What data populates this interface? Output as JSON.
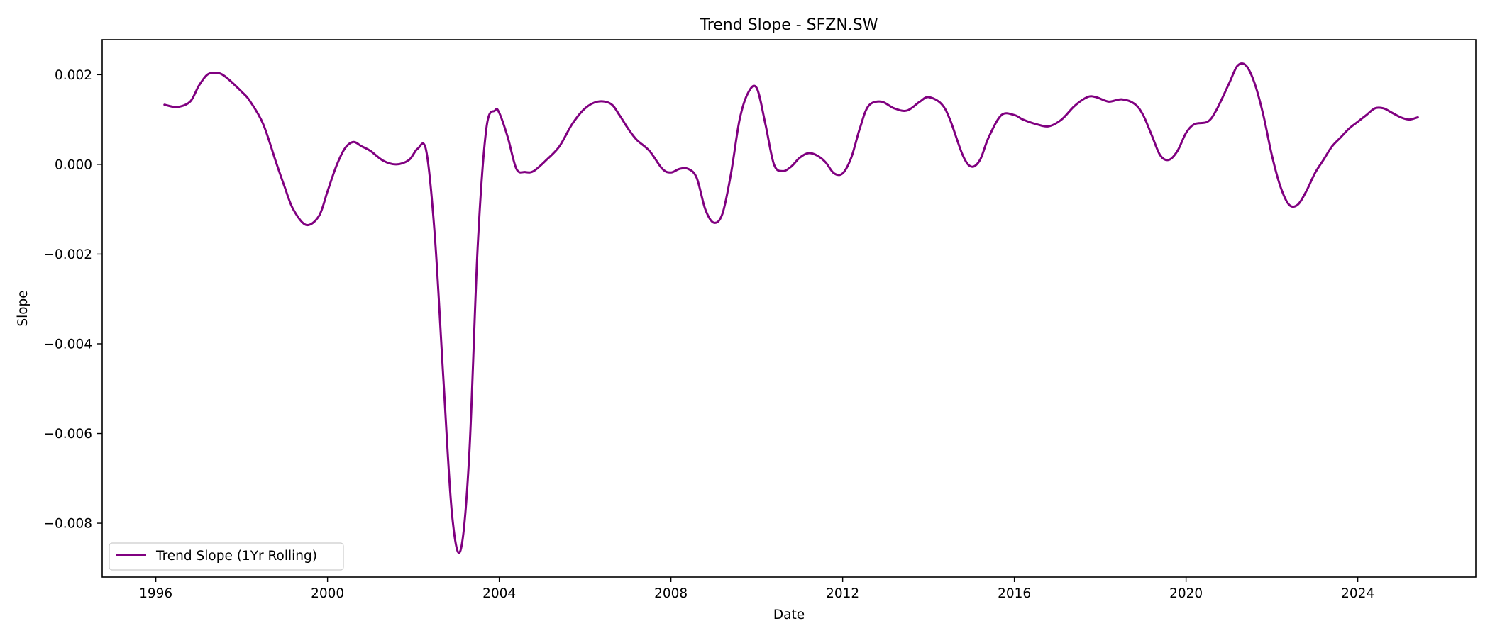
{
  "chart_data": {
    "type": "line",
    "title": "Trend Slope - SFZN.SW",
    "xlabel": "Date",
    "ylabel": "Slope",
    "xlim": [
      1994.75,
      2026.75
    ],
    "ylim": [
      -0.0092,
      0.00278
    ],
    "x_ticks": [
      1996,
      2000,
      2004,
      2008,
      2012,
      2016,
      2020,
      2024
    ],
    "y_ticks": [
      -0.008,
      -0.006,
      -0.004,
      -0.002,
      0.0,
      0.002
    ],
    "y_tick_labels": [
      "−0.008",
      "−0.006",
      "−0.004",
      "−0.002",
      "0.000",
      "0.002"
    ],
    "grid": false,
    "legend_position": "lower-left",
    "series": [
      {
        "name": "Trend Slope (1Yr Rolling)",
        "color": "#800080",
        "x": [
          1996.2,
          1996.5,
          1996.8,
          1997.0,
          1997.2,
          1997.4,
          1997.6,
          1998.0,
          1998.2,
          1998.5,
          1998.8,
          1999.0,
          1999.2,
          1999.5,
          1999.8,
          2000.0,
          2000.2,
          2000.4,
          2000.6,
          2000.8,
          2001.0,
          2001.3,
          2001.6,
          2001.9,
          2002.1,
          2002.3,
          2002.5,
          2002.7,
          2002.9,
          2003.1,
          2003.3,
          2003.5,
          2003.7,
          2003.9,
          2004.0,
          2004.2,
          2004.4,
          2004.6,
          2004.8,
          2005.1,
          2005.4,
          2005.7,
          2006.0,
          2006.3,
          2006.6,
          2006.8,
          2007.0,
          2007.2,
          2007.5,
          2007.8,
          2008.0,
          2008.2,
          2008.4,
          2008.6,
          2008.8,
          2009.0,
          2009.2,
          2009.4,
          2009.6,
          2009.8,
          2010.0,
          2010.2,
          2010.4,
          2010.6,
          2010.8,
          2011.0,
          2011.2,
          2011.4,
          2011.6,
          2011.8,
          2012.0,
          2012.2,
          2012.4,
          2012.6,
          2012.9,
          2013.2,
          2013.5,
          2013.8,
          2014.0,
          2014.3,
          2014.5,
          2014.8,
          2015.0,
          2015.2,
          2015.4,
          2015.7,
          2016.0,
          2016.2,
          2016.5,
          2016.8,
          2017.1,
          2017.4,
          2017.7,
          2017.9,
          2018.2,
          2018.5,
          2018.8,
          2019.0,
          2019.2,
          2019.4,
          2019.6,
          2019.8,
          2020.0,
          2020.2,
          2020.5,
          2020.7,
          2021.0,
          2021.2,
          2021.4,
          2021.6,
          2021.8,
          2022.0,
          2022.2,
          2022.4,
          2022.6,
          2022.8,
          2023.0,
          2023.2,
          2023.4,
          2023.6,
          2023.8,
          2024.0,
          2024.2,
          2024.4,
          2024.6,
          2024.8,
          2025.0,
          2025.2,
          2025.4
        ],
        "y": [
          0.00133,
          0.00128,
          0.0014,
          0.00175,
          0.002,
          0.00204,
          0.00197,
          0.00162,
          0.0014,
          0.0009,
          5e-05,
          -0.0005,
          -0.001,
          -0.00135,
          -0.00115,
          -0.0006,
          -5e-05,
          0.00035,
          0.0005,
          0.0004,
          0.0003,
          8e-05,
          0.0,
          0.0001,
          0.00035,
          0.0003,
          -0.0016,
          -0.0048,
          -0.0078,
          -0.0086,
          -0.0065,
          -0.0018,
          0.0008,
          0.0012,
          0.00115,
          0.0006,
          -0.0001,
          -0.00017,
          -0.00015,
          0.0001,
          0.0004,
          0.0009,
          0.00125,
          0.0014,
          0.00135,
          0.0011,
          0.0008,
          0.00055,
          0.0003,
          -0.0001,
          -0.00018,
          -0.0001,
          -0.0001,
          -0.0003,
          -0.001,
          -0.0013,
          -0.0011,
          -0.0002,
          0.001,
          0.0016,
          0.0017,
          0.0009,
          0.0,
          -0.00015,
          -5e-05,
          0.00015,
          0.00025,
          0.0002,
          5e-05,
          -0.0002,
          -0.0002,
          0.00015,
          0.0008,
          0.0013,
          0.0014,
          0.00125,
          0.0012,
          0.0014,
          0.0015,
          0.00135,
          0.001,
          0.0002,
          -5e-05,
          0.0001,
          0.0006,
          0.0011,
          0.0011,
          0.001,
          0.0009,
          0.00085,
          0.001,
          0.0013,
          0.0015,
          0.0015,
          0.0014,
          0.00145,
          0.00135,
          0.0011,
          0.00065,
          0.0002,
          0.0001,
          0.0003,
          0.0007,
          0.0009,
          0.00095,
          0.0012,
          0.0018,
          0.0022,
          0.0022,
          0.0018,
          0.0011,
          0.0002,
          -0.0005,
          -0.0009,
          -0.0009,
          -0.0006,
          -0.0002,
          0.0001,
          0.0004,
          0.0006,
          0.0008,
          0.00095,
          0.0011,
          0.00125,
          0.00125,
          0.00115,
          0.00105,
          0.001,
          0.00105
        ]
      }
    ]
  }
}
